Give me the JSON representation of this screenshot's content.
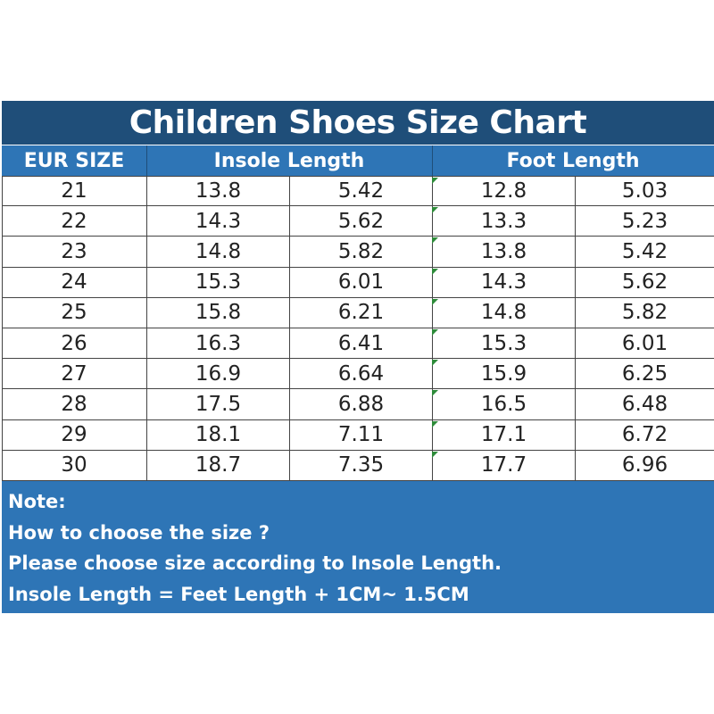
{
  "title": "Children Shoes Size Chart",
  "headers": {
    "eur": "EUR SIZE",
    "insole": "Insole Length",
    "foot": "Foot Length"
  },
  "rows": [
    {
      "eur": "21",
      "insole_cm": "13.8",
      "insole_in": "5.42",
      "foot_cm": "12.8",
      "foot_in": "5.03"
    },
    {
      "eur": "22",
      "insole_cm": "14.3",
      "insole_in": "5.62",
      "foot_cm": "13.3",
      "foot_in": "5.23"
    },
    {
      "eur": "23",
      "insole_cm": "14.8",
      "insole_in": "5.82",
      "foot_cm": "13.8",
      "foot_in": "5.42"
    },
    {
      "eur": "24",
      "insole_cm": "15.3",
      "insole_in": "6.01",
      "foot_cm": "14.3",
      "foot_in": "5.62"
    },
    {
      "eur": "25",
      "insole_cm": "15.8",
      "insole_in": "6.21",
      "foot_cm": "14.8",
      "foot_in": "5.82"
    },
    {
      "eur": "26",
      "insole_cm": "16.3",
      "insole_in": "6.41",
      "foot_cm": "15.3",
      "foot_in": "6.01"
    },
    {
      "eur": "27",
      "insole_cm": "16.9",
      "insole_in": "6.64",
      "foot_cm": "15.9",
      "foot_in": "6.25"
    },
    {
      "eur": "28",
      "insole_cm": "17.5",
      "insole_in": "6.88",
      "foot_cm": "16.5",
      "foot_in": "6.48"
    },
    {
      "eur": "29",
      "insole_cm": "18.1",
      "insole_in": "7.11",
      "foot_cm": "17.1",
      "foot_in": "6.72"
    },
    {
      "eur": "30",
      "insole_cm": "18.7",
      "insole_in": "7.35",
      "foot_cm": "17.7",
      "foot_in": "6.96"
    }
  ],
  "note": {
    "heading": "Note:",
    "line1": "How to choose the size ?",
    "line2": "Please choose size according to Insole Length.",
    "line3": "Insole Length = Feet Length + 1CM~ 1.5CM"
  },
  "colors": {
    "title_bg": "#1f4e79",
    "header_bg": "#2e75b6",
    "note_bg": "#2e75b6",
    "text": "#ffffff",
    "cell_marker": "#2e8b3a"
  }
}
